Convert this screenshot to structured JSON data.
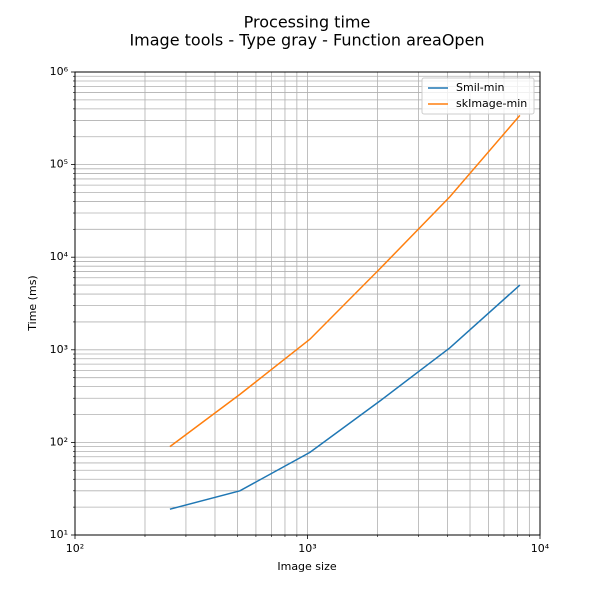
{
  "chart_data": {
    "type": "line",
    "title": "Processing time",
    "subtitle": "Image tools - Type gray - Function areaOpen",
    "x_label": "Image size",
    "y_label": "Time (ms)",
    "x": [
      256,
      512,
      1024,
      2048,
      4096,
      8192
    ],
    "series": [
      {
        "name": "Smil-min",
        "color": "#1f77b4",
        "values": [
          19,
          30,
          78,
          280,
          1050,
          5000
        ]
      },
      {
        "name": "skImage-min",
        "color": "#ff7f0e",
        "values": [
          90,
          330,
          1300,
          7500,
          45000,
          340000
        ]
      }
    ],
    "xscale": "log",
    "yscale": "log",
    "xlim": [
      100,
      10000
    ],
    "ylim": [
      10,
      1000000
    ],
    "xticks": [
      {
        "value": 100,
        "label": "10²"
      },
      {
        "value": 1000,
        "label": "10³"
      },
      {
        "value": 10000,
        "label": "10⁴"
      }
    ],
    "yticks": [
      {
        "value": 10,
        "label": "10¹"
      },
      {
        "value": 100,
        "label": "10²"
      },
      {
        "value": 1000,
        "label": "10³"
      },
      {
        "value": 10000,
        "label": "10⁴"
      },
      {
        "value": 100000,
        "label": "10⁵"
      },
      {
        "value": 1000000,
        "label": "10⁶"
      }
    ],
    "xminorticks": [
      200,
      300,
      400,
      500,
      600,
      700,
      800,
      900,
      2000,
      3000,
      4000,
      5000,
      6000,
      7000,
      8000,
      9000
    ],
    "yminorticks": [
      20,
      30,
      40,
      50,
      60,
      70,
      80,
      90,
      200,
      300,
      400,
      500,
      600,
      700,
      800,
      900,
      2000,
      3000,
      4000,
      5000,
      6000,
      7000,
      8000,
      9000,
      20000,
      30000,
      40000,
      50000,
      60000,
      70000,
      80000,
      90000,
      200000,
      300000,
      400000,
      500000,
      600000,
      700000,
      800000,
      900000
    ],
    "grid": true,
    "legend": "upper right"
  }
}
